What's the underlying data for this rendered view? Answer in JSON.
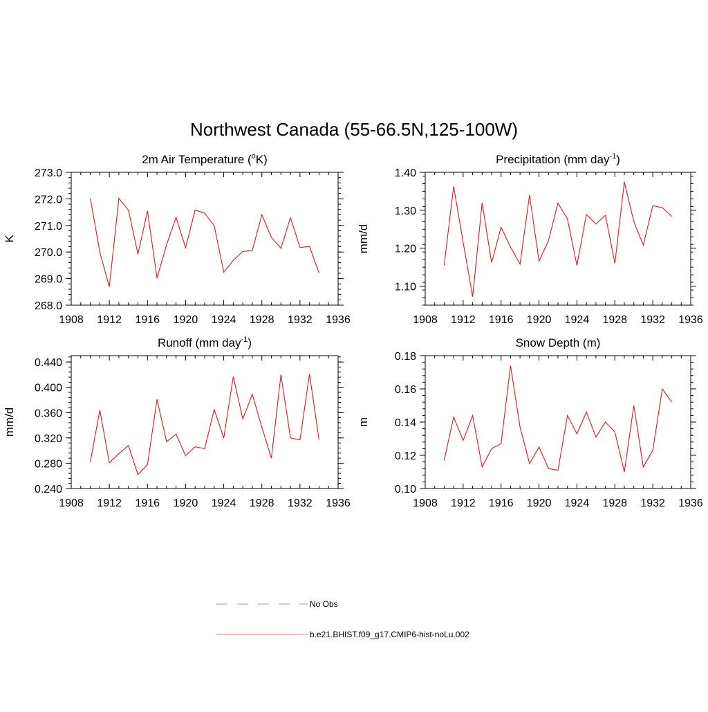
{
  "title": "Northwest Canada (55-66.5N,125-100W)",
  "colors": {
    "model": "#e8141c",
    "obs": "#a9a9ee",
    "axis": "#000000"
  },
  "legend": [
    {
      "label": "No Obs",
      "style": "dashed",
      "color": "#a9a9ee"
    },
    {
      "label": "b.e21.BHIST.f09_g17.CMIP6-hist-noLu.002",
      "style": "solid",
      "color": "#ff8c8c"
    }
  ],
  "chart_data": [
    {
      "type": "line",
      "title_main": "2m Air Temperature (",
      "title_sup": "o",
      "title_tail": "K)",
      "ylabel": "K",
      "xlim": [
        1908,
        1936
      ],
      "xticks": [
        "1908",
        "1912",
        "1916",
        "1920",
        "1924",
        "1928",
        "1932",
        "1936"
      ],
      "ylim": [
        268.0,
        273.0
      ],
      "yticks": [
        "268.0",
        "269.0",
        "270.0",
        "271.0",
        "272.0",
        "273.0"
      ],
      "x": [
        1910,
        1911,
        1912,
        1913,
        1914,
        1915,
        1916,
        1917,
        1918,
        1919,
        1920,
        1921,
        1922,
        1923,
        1924,
        1925,
        1926,
        1927,
        1928,
        1929,
        1930,
        1931,
        1932,
        1933,
        1934
      ],
      "values": [
        272.02,
        269.99,
        268.69,
        272.02,
        271.58,
        269.92,
        271.55,
        269.02,
        270.27,
        271.3,
        270.16,
        271.58,
        271.46,
        270.99,
        269.24,
        269.69,
        270.02,
        270.06,
        271.4,
        270.55,
        270.14,
        271.29,
        270.17,
        270.21,
        269.21
      ]
    },
    {
      "type": "line",
      "title_main": "Precipitation (mm day",
      "title_sup": "-1",
      "title_tail": ")",
      "ylabel": "mm/d",
      "xlim": [
        1908,
        1936
      ],
      "xticks": [
        "1908",
        "1912",
        "1916",
        "1920",
        "1924",
        "1928",
        "1932",
        "1936"
      ],
      "ylim": [
        1.05,
        1.4
      ],
      "yticks": [
        "1.10",
        "1.20",
        "1.30",
        "1.40"
      ],
      "x": [
        1910,
        1911,
        1912,
        1913,
        1914,
        1915,
        1916,
        1917,
        1918,
        1919,
        1920,
        1921,
        1922,
        1923,
        1924,
        1925,
        1926,
        1927,
        1928,
        1929,
        1930,
        1931,
        1932,
        1933,
        1934
      ],
      "values": [
        1.155,
        1.363,
        1.215,
        1.072,
        1.32,
        1.162,
        1.255,
        1.203,
        1.158,
        1.34,
        1.166,
        1.22,
        1.319,
        1.277,
        1.155,
        1.289,
        1.264,
        1.287,
        1.16,
        1.375,
        1.27,
        1.208,
        1.312,
        1.307,
        1.284
      ]
    },
    {
      "type": "line",
      "title_main": "Runoff (mm day",
      "title_sup": "-1",
      "title_tail": ")",
      "ylabel": "mm/d",
      "xlim": [
        1908,
        1936
      ],
      "xticks": [
        "1908",
        "1912",
        "1916",
        "1920",
        "1924",
        "1928",
        "1932",
        "1936"
      ],
      "ylim": [
        0.24,
        0.45
      ],
      "yticks": [
        "0.240",
        "0.280",
        "0.320",
        "0.360",
        "0.400",
        "0.440"
      ],
      "x": [
        1910,
        1911,
        1912,
        1913,
        1914,
        1915,
        1916,
        1917,
        1918,
        1919,
        1920,
        1921,
        1922,
        1923,
        1924,
        1925,
        1926,
        1927,
        1928,
        1929,
        1930,
        1931,
        1932,
        1933,
        1934
      ],
      "values": [
        0.282,
        0.364,
        0.281,
        0.295,
        0.308,
        0.262,
        0.278,
        0.381,
        0.314,
        0.326,
        0.292,
        0.306,
        0.303,
        0.365,
        0.32,
        0.417,
        0.35,
        0.389,
        0.337,
        0.288,
        0.42,
        0.32,
        0.317,
        0.421,
        0.317
      ]
    },
    {
      "type": "line",
      "title_main": "Snow Depth (m)",
      "title_sup": "",
      "title_tail": "",
      "ylabel": "m",
      "xlim": [
        1908,
        1936
      ],
      "xticks": [
        "1908",
        "1912",
        "1916",
        "1920",
        "1924",
        "1928",
        "1932",
        "1936"
      ],
      "ylim": [
        0.1,
        0.18
      ],
      "yticks": [
        "0.10",
        "0.12",
        "0.14",
        "0.16",
        "0.18"
      ],
      "x": [
        1910,
        1911,
        1912,
        1913,
        1914,
        1915,
        1916,
        1917,
        1918,
        1919,
        1920,
        1921,
        1922,
        1923,
        1924,
        1925,
        1926,
        1927,
        1928,
        1929,
        1930,
        1931,
        1932,
        1933,
        1934
      ],
      "values": [
        0.117,
        0.143,
        0.129,
        0.144,
        0.113,
        0.124,
        0.127,
        0.174,
        0.137,
        0.115,
        0.125,
        0.112,
        0.111,
        0.144,
        0.133,
        0.146,
        0.131,
        0.14,
        0.134,
        0.11,
        0.15,
        0.113,
        0.123,
        0.16,
        0.152
      ]
    }
  ]
}
